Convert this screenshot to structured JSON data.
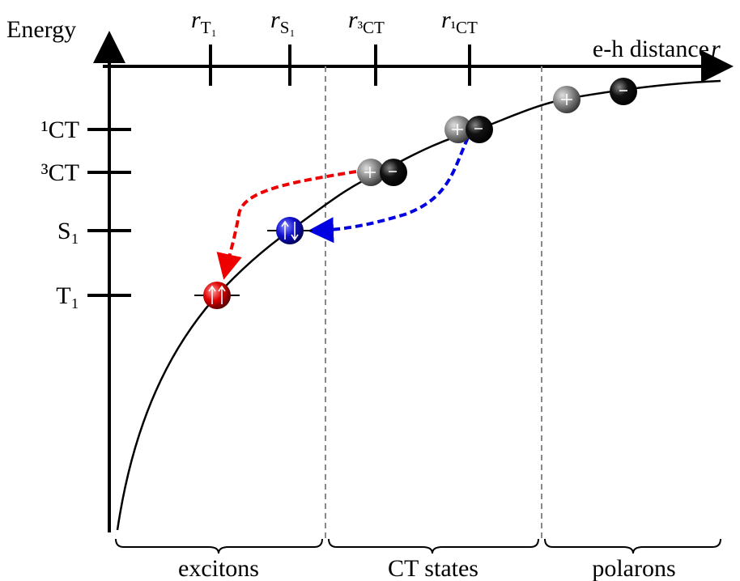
{
  "axes": {
    "y_label": "Energy",
    "x_label": {
      "text": "e-h distance",
      "symbol": "r"
    }
  },
  "x_ticks": [
    {
      "symbol": "r",
      "sub": "T₁"
    },
    {
      "symbol": "r",
      "sub": "S₁"
    },
    {
      "symbol": "r",
      "sub": "³CT"
    },
    {
      "symbol": "r",
      "sub": "¹CT"
    }
  ],
  "y_ticks": [
    "¹CT",
    "³CT",
    "S₁",
    "T₁"
  ],
  "regions": [
    "excitons",
    "CT states",
    "polarons"
  ]
}
